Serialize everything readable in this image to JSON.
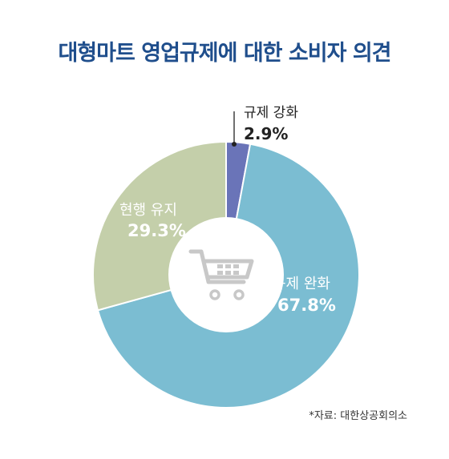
{
  "title": "대형마트 영업규제에 대한 소비자 의견",
  "source": "*자료: 대한상공회의소",
  "center_icon": "shopping-cart-icon",
  "colors": {
    "title": "#1f4e8c",
    "strengthen": "#6a74b8",
    "relax": "#7bbdd2",
    "maintain": "#c4cfaa",
    "center": "#ffffff",
    "icon": "#c8c8c8"
  },
  "chart_data": {
    "type": "donut",
    "title": "대형마트 영업규제에 대한 소비자 의견",
    "unit": "%",
    "slices": [
      {
        "label": "규제 강화",
        "value": 2.9,
        "display": "2.9%",
        "color": "#6a74b8"
      },
      {
        "label": "규제 완화",
        "value": 67.8,
        "display": "67.8%",
        "color": "#7bbdd2"
      },
      {
        "label": "현행 유지",
        "value": 29.3,
        "display": "29.3%",
        "color": "#c4cfaa"
      }
    ],
    "start": "12 o'clock",
    "direction": "clockwise",
    "legend": "none (labels on slices)"
  }
}
